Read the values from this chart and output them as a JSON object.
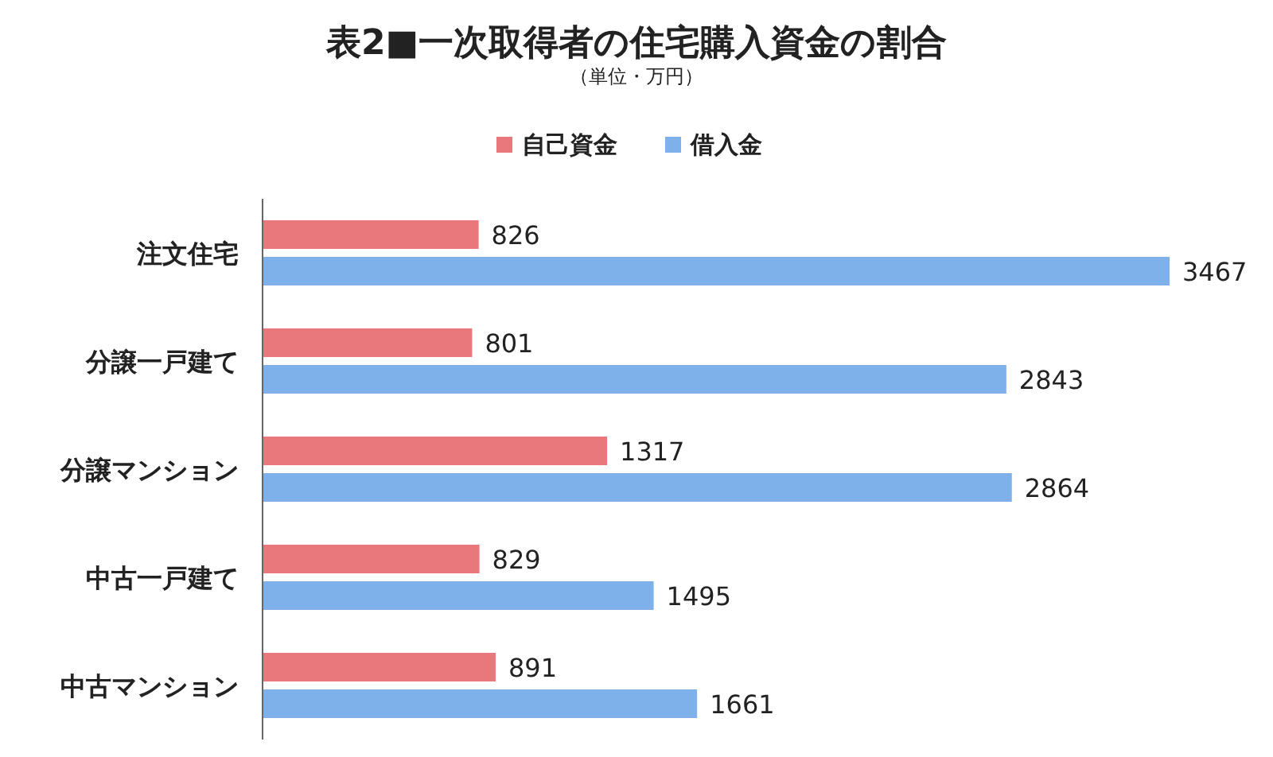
{
  "chart_data": {
    "type": "bar",
    "orientation": "horizontal",
    "title": "表2■一次取得者の住宅購入資金の割合",
    "subtitle": "（単位・万円）",
    "categories": [
      "注文住宅",
      "分譲一戸建て",
      "分譲マンション",
      "中古一戸建て",
      "中古マンション"
    ],
    "series": [
      {
        "name": "自己資金",
        "color": "#e8787c",
        "values": [
          826,
          801,
          1317,
          829,
          891
        ]
      },
      {
        "name": "借入金",
        "color": "#7eb0ea",
        "values": [
          3467,
          2843,
          2864,
          1495,
          1661
        ]
      }
    ],
    "data_labels": true,
    "legend": "top"
  }
}
